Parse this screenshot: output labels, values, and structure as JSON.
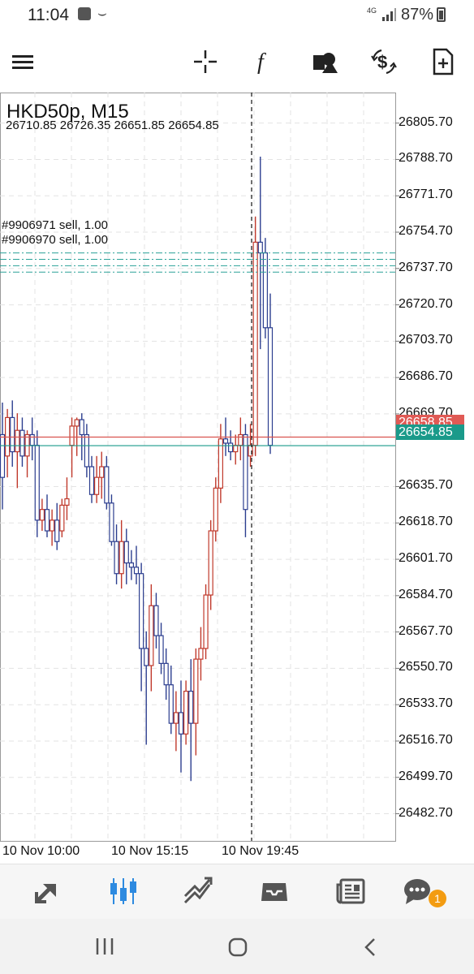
{
  "status_bar": {
    "time": "11:04",
    "network": "4G",
    "battery": "87%"
  },
  "toolbar": {
    "menu_icon": "hamburger-menu-icon",
    "buttons": [
      "crosshair-icon",
      "function-f-icon",
      "objects-shapes-icon",
      "trade-dollar-icon",
      "new-document-icon"
    ]
  },
  "chart": {
    "symbol_title": "HKD50p, M15",
    "ohlc": "26710.85 26726.35 26651.85 26654.85",
    "orders": [
      {
        "label": "#9906971 sell, 1.00"
      },
      {
        "label": "#9906970 sell, 1.00"
      }
    ],
    "ask_price": "26658.85",
    "bid_price": "26654.85",
    "price_axis": [
      "26805.70",
      "26788.70",
      "26771.70",
      "26754.70",
      "26737.70",
      "26720.70",
      "26703.70",
      "26686.70",
      "26669.70",
      "26635.70",
      "26618.70",
      "26601.70",
      "26584.70",
      "26567.70",
      "26550.70",
      "26533.70",
      "26516.70",
      "26499.70",
      "26482.70"
    ],
    "time_axis": [
      "10 Nov 10:00",
      "10 Nov 15:15",
      "10 Nov 19:45"
    ],
    "colors": {
      "bull": "#c0392b",
      "bear": "#2c3e8f",
      "ask_line": "#d9534f",
      "bid_line": "#1a9a8a",
      "order_line": "#2aa198",
      "grid": "#e3e3e3"
    }
  },
  "chart_data": {
    "type": "candlestick",
    "title": "HKD50p, M15",
    "ylim": [
      26470,
      26820
    ],
    "candles": [
      {
        "o": 26660,
        "h": 26675,
        "l": 26625,
        "c": 26640
      },
      {
        "o": 26650,
        "h": 26672,
        "l": 26640,
        "c": 26668
      },
      {
        "o": 26668,
        "h": 26676,
        "l": 26645,
        "c": 26652
      },
      {
        "o": 26652,
        "h": 26670,
        "l": 26635,
        "c": 26662
      },
      {
        "o": 26662,
        "h": 26668,
        "l": 26645,
        "c": 26650
      },
      {
        "o": 26650,
        "h": 26662,
        "l": 26640,
        "c": 26660
      },
      {
        "o": 26660,
        "h": 26668,
        "l": 26648,
        "c": 26655
      },
      {
        "o": 26655,
        "h": 26662,
        "l": 26612,
        "c": 26620
      },
      {
        "o": 26620,
        "h": 26630,
        "l": 26615,
        "c": 26625
      },
      {
        "o": 26625,
        "h": 26632,
        "l": 26612,
        "c": 26615
      },
      {
        "o": 26615,
        "h": 26625,
        "l": 26608,
        "c": 26620
      },
      {
        "o": 26620,
        "h": 26628,
        "l": 26606,
        "c": 26610
      },
      {
        "o": 26615,
        "h": 26630,
        "l": 26612,
        "c": 26627
      },
      {
        "o": 26627,
        "h": 26640,
        "l": 26620,
        "c": 26630
      },
      {
        "o": 26655,
        "h": 26668,
        "l": 26640,
        "c": 26664
      },
      {
        "o": 26664,
        "h": 26668,
        "l": 26650,
        "c": 26667
      },
      {
        "o": 26667,
        "h": 26670,
        "l": 26648,
        "c": 26660
      },
      {
        "o": 26660,
        "h": 26665,
        "l": 26640,
        "c": 26645
      },
      {
        "o": 26645,
        "h": 26650,
        "l": 26628,
        "c": 26632
      },
      {
        "o": 26632,
        "h": 26650,
        "l": 26628,
        "c": 26640
      },
      {
        "o": 26640,
        "h": 26652,
        "l": 26630,
        "c": 26645
      },
      {
        "o": 26645,
        "h": 26650,
        "l": 26625,
        "c": 26628
      },
      {
        "o": 26628,
        "h": 26632,
        "l": 26608,
        "c": 26610
      },
      {
        "o": 26610,
        "h": 26618,
        "l": 26590,
        "c": 26595
      },
      {
        "o": 26595,
        "h": 26620,
        "l": 26588,
        "c": 26610
      },
      {
        "o": 26610,
        "h": 26616,
        "l": 26590,
        "c": 26600
      },
      {
        "o": 26600,
        "h": 26606,
        "l": 26592,
        "c": 26598
      },
      {
        "o": 26598,
        "h": 26608,
        "l": 26590,
        "c": 26595
      },
      {
        "o": 26595,
        "h": 26600,
        "l": 26540,
        "c": 26560
      },
      {
        "o": 26560,
        "h": 26568,
        "l": 26515,
        "c": 26552
      },
      {
        "o": 26552,
        "h": 26590,
        "l": 26540,
        "c": 26580
      },
      {
        "o": 26580,
        "h": 26586,
        "l": 26560,
        "c": 26566
      },
      {
        "o": 26566,
        "h": 26572,
        "l": 26548,
        "c": 26553
      },
      {
        "o": 26553,
        "h": 26560,
        "l": 26536,
        "c": 26543
      },
      {
        "o": 26543,
        "h": 26552,
        "l": 26520,
        "c": 26525
      },
      {
        "o": 26525,
        "h": 26540,
        "l": 26512,
        "c": 26530
      },
      {
        "o": 26530,
        "h": 26545,
        "l": 26502,
        "c": 26520
      },
      {
        "o": 26520,
        "h": 26545,
        "l": 26515,
        "c": 26540
      },
      {
        "o": 26540,
        "h": 26555,
        "l": 26498,
        "c": 26525
      },
      {
        "o": 26525,
        "h": 26560,
        "l": 26510,
        "c": 26555
      },
      {
        "o": 26555,
        "h": 26570,
        "l": 26545,
        "c": 26560
      },
      {
        "o": 26560,
        "h": 26590,
        "l": 26555,
        "c": 26585
      },
      {
        "o": 26585,
        "h": 26620,
        "l": 26578,
        "c": 26615
      },
      {
        "o": 26615,
        "h": 26640,
        "l": 26610,
        "c": 26635
      },
      {
        "o": 26635,
        "h": 26665,
        "l": 26628,
        "c": 26658
      },
      {
        "o": 26658,
        "h": 26668,
        "l": 26650,
        "c": 26656
      },
      {
        "o": 26656,
        "h": 26662,
        "l": 26648,
        "c": 26652
      },
      {
        "o": 26652,
        "h": 26660,
        "l": 26646,
        "c": 26655
      },
      {
        "o": 26655,
        "h": 26668,
        "l": 26648,
        "c": 26660
      },
      {
        "o": 26660,
        "h": 26665,
        "l": 26612,
        "c": 26625
      },
      {
        "o": 26650,
        "h": 26665,
        "l": 26645,
        "c": 26655
      },
      {
        "o": 26655,
        "h": 26762,
        "l": 26650,
        "c": 26750
      },
      {
        "o": 26750,
        "h": 26790,
        "l": 26700,
        "c": 26745
      },
      {
        "o": 26745,
        "h": 26752,
        "l": 26705,
        "c": 26710
      },
      {
        "o": 26710,
        "h": 26726,
        "l": 26651,
        "c": 26655
      }
    ]
  },
  "tabbar": {
    "tabs": [
      "quotes-icon",
      "chart-icon",
      "trade-icon",
      "history-icon",
      "news-icon",
      "messages-icon"
    ],
    "active": 1,
    "messages_badge": "1"
  },
  "navbar": {
    "buttons": [
      "recent-apps-icon",
      "home-icon",
      "back-icon"
    ]
  }
}
